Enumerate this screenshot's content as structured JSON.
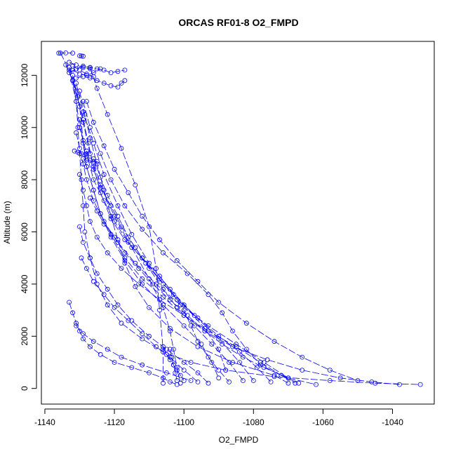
{
  "chart_data": {
    "type": "scatter",
    "title": "ORCAS RF01-8 O2_FMPD",
    "xlabel": "O2_FMPD",
    "ylabel": "Altitude (m)",
    "xlim": [
      -1141,
      -1028
    ],
    "ylim": [
      -600,
      13300
    ],
    "xticks": [
      "-1140",
      "-1120",
      "-1100",
      "-1080",
      "-1060",
      "-1040"
    ],
    "yticks": [
      "0",
      "2000",
      "4000",
      "6000",
      "8000",
      "10000",
      "12000"
    ],
    "grid": false,
    "legend": "none",
    "style": {
      "color": "#0000ff",
      "marker": "open-circle",
      "line": "dashed"
    },
    "series": [
      {
        "x": [
          -1135.5,
          -1133,
          -1131,
          -1130.5,
          -1130,
          -1129.5,
          -1129,
          -1128.5,
          -1127,
          -1125,
          -1122,
          -1118,
          -1112,
          -1106,
          -1098,
          -1088,
          -1074,
          -1058,
          -1045,
          -1032
        ],
        "y": [
          12850,
          12200,
          11000,
          10000,
          9000,
          8000,
          7000,
          6000,
          5000,
          4000,
          3200,
          2500,
          1900,
          1400,
          1000,
          700,
          450,
          300,
          200,
          150
        ]
      },
      {
        "x": [
          -1134,
          -1132,
          -1130,
          -1129,
          -1128,
          -1126,
          -1124,
          -1121,
          -1117,
          -1112,
          -1106,
          -1100,
          -1094,
          -1086,
          -1076,
          -1066,
          -1055,
          -1046,
          -1038
        ],
        "y": [
          12400,
          11800,
          10800,
          9500,
          8500,
          7600,
          6700,
          5900,
          5000,
          4200,
          3500,
          2800,
          2200,
          1600,
          1100,
          700,
          400,
          250,
          150
        ]
      },
      {
        "x": [
          -1132,
          -1130.5,
          -1129,
          -1127.5,
          -1126,
          -1124,
          -1121,
          -1117,
          -1112,
          -1107,
          -1103,
          -1100,
          -1098,
          -1096,
          -1093,
          -1090,
          -1087
        ],
        "y": [
          12000,
          11200,
          10300,
          9400,
          8500,
          7500,
          6500,
          5700,
          5000,
          4300,
          3600,
          3000,
          2400,
          1800,
          1200,
          700,
          250
        ]
      },
      {
        "x": [
          -1133,
          -1131,
          -1129,
          -1127,
          -1124,
          -1120,
          -1115,
          -1110,
          -1106,
          -1104,
          -1103,
          -1102,
          -1101
        ],
        "y": [
          12300,
          11400,
          10200,
          9000,
          7800,
          6600,
          5400,
          4200,
          3100,
          2200,
          1500,
          800,
          200
        ]
      },
      {
        "x": [
          -1131,
          -1129,
          -1126,
          -1123,
          -1119,
          -1115,
          -1110,
          -1104,
          -1097,
          -1090,
          -1084,
          -1080
        ],
        "y": [
          11700,
          10600,
          9400,
          8200,
          7000,
          5900,
          4800,
          3800,
          2800,
          1900,
          1000,
          300
        ]
      },
      {
        "x": [
          -1130,
          -1128.5,
          -1127,
          -1125,
          -1123,
          -1121,
          -1119,
          -1117,
          -1114,
          -1110,
          -1104,
          -1096,
          -1086,
          -1074,
          -1070
        ],
        "y": [
          11400,
          10500,
          9600,
          8600,
          7600,
          6600,
          5700,
          4800,
          3900,
          3100,
          2300,
          1600,
          1000,
          500,
          200
        ]
      },
      {
        "x": [
          -1129,
          -1127,
          -1124,
          -1121,
          -1117,
          -1112,
          -1106,
          -1099,
          -1093,
          -1089,
          -1086,
          -1082,
          -1078,
          -1072,
          -1067
        ],
        "y": [
          11000,
          10000,
          9000,
          8000,
          7000,
          6100,
          5200,
          4400,
          3600,
          2900,
          2200,
          1500,
          900,
          500,
          200
        ]
      },
      {
        "x": [
          -1131,
          -1130,
          -1129,
          -1128,
          -1126,
          -1123,
          -1119,
          -1114,
          -1108,
          -1101,
          -1093,
          -1085,
          -1077,
          -1070
        ],
        "y": [
          9800,
          9200,
          8600,
          8000,
          7200,
          6400,
          5600,
          4800,
          4000,
          3200,
          2400,
          1700,
          1000,
          400
        ]
      },
      {
        "x": [
          -1128,
          -1126,
          -1123,
          -1120,
          -1116,
          -1112,
          -1107,
          -1102,
          -1096,
          -1090,
          -1082,
          -1074,
          -1066,
          -1058,
          -1050
        ],
        "y": [
          11000,
          10200,
          9300,
          8400,
          7500,
          6600,
          5700,
          4900,
          4100,
          3300,
          2500,
          1800,
          1200,
          700,
          300
        ]
      },
      {
        "x": [
          -1130,
          -1129,
          -1128,
          -1126,
          -1124,
          -1121,
          -1117,
          -1112,
          -1106,
          -1100,
          -1095,
          -1092,
          -1090
        ],
        "y": [
          10300,
          9400,
          8500,
          7600,
          6700,
          5800,
          4900,
          4000,
          3200,
          2400,
          1700,
          1000,
          400
        ]
      },
      {
        "x": [
          -1127,
          -1125,
          -1122,
          -1118,
          -1114,
          -1110,
          -1108,
          -1107,
          -1106,
          -1106
        ],
        "y": [
          12300,
          11500,
          10500,
          9200,
          7800,
          6200,
          4600,
          3000,
          1500,
          200
        ]
      },
      {
        "x": [
          -1133,
          -1132,
          -1131,
          -1130,
          -1129,
          -1127,
          -1124,
          -1120,
          -1115,
          -1110,
          -1106,
          -1104,
          -1102
        ],
        "y": [
          3300,
          2900,
          2500,
          2200,
          1900,
          1600,
          1300,
          1000,
          800,
          600,
          400,
          250,
          150
        ]
      },
      {
        "x": [
          -1131,
          -1129,
          -1126,
          -1122,
          -1118,
          -1112,
          -1105,
          -1098
        ],
        "y": [
          2400,
          2100,
          1800,
          1500,
          1200,
          900,
          600,
          300
        ]
      },
      {
        "x": [
          -1129.5,
          -1128,
          -1126,
          -1123,
          -1120,
          -1116,
          -1112,
          -1108,
          -1104,
          -1100,
          -1096
        ],
        "y": [
          5000,
          4600,
          4100,
          3600,
          3100,
          2600,
          2100,
          1600,
          1200,
          700,
          250
        ]
      },
      {
        "x": [
          -1128,
          -1126,
          -1124,
          -1121,
          -1118,
          -1114,
          -1110,
          -1106,
          -1102,
          -1097,
          -1092,
          -1087,
          -1083
        ],
        "y": [
          9100,
          8400,
          7700,
          7000,
          6200,
          5400,
          4600,
          3800,
          3100,
          2400,
          1700,
          1000,
          300
        ]
      },
      {
        "x": [
          -1132,
          -1131,
          -1130,
          -1128,
          -1126,
          -1123,
          -1120,
          -1116,
          -1111,
          -1106,
          -1100,
          -1094,
          -1090,
          -1088
        ],
        "y": [
          11800,
          11000,
          10000,
          9000,
          8000,
          7200,
          6400,
          5600,
          4800,
          4000,
          3200,
          2300,
          1500,
          700
        ]
      },
      {
        "x": [
          -1126,
          -1124,
          -1122,
          -1119,
          -1116,
          -1112,
          -1107,
          -1102,
          -1096,
          -1090,
          -1084,
          -1079,
          -1075
        ],
        "y": [
          8800,
          8100,
          7400,
          6600,
          5800,
          5000,
          4200,
          3400,
          2700,
          2000,
          1400,
          800,
          250
        ]
      },
      {
        "x": [
          -1130,
          -1129,
          -1128,
          -1127,
          -1125,
          -1122,
          -1118,
          -1113,
          -1107,
          -1100,
          -1093,
          -1085,
          -1078,
          -1072,
          -1068
        ],
        "y": [
          8200,
          7600,
          7000,
          6400,
          5800,
          5200,
          4600,
          4000,
          3400,
          2800,
          2200,
          1600,
          1000,
          500,
          200
        ]
      },
      {
        "x": [
          -1127,
          -1125,
          -1123,
          -1120,
          -1117,
          -1113,
          -1109,
          -1104,
          -1099,
          -1094,
          -1089,
          -1083,
          -1077,
          -1070,
          -1062
        ],
        "y": [
          7300,
          6800,
          6300,
          5800,
          5200,
          4600,
          4000,
          3400,
          2800,
          2200,
          1700,
          1200,
          800,
          400,
          150
        ]
      },
      {
        "x": [
          -1130,
          -1129,
          -1127,
          -1125,
          -1122,
          -1119,
          -1115,
          -1110,
          -1105,
          -1100,
          -1096,
          -1093
        ],
        "y": [
          6200,
          5600,
          5000,
          4400,
          3800,
          3200,
          2600,
          2000,
          1500,
          1000,
          600,
          200
        ]
      },
      {
        "x": [
          -1136,
          -1134,
          -1132
        ],
        "y": [
          12850,
          12860,
          12850
        ]
      },
      {
        "x": [
          -1130,
          -1129.5,
          -1129
        ],
        "y": [
          12750,
          12740,
          12730
        ]
      },
      {
        "x": [
          -1133,
          -1131,
          -1129,
          -1127,
          -1125,
          -1123,
          -1121,
          -1119,
          -1117
        ],
        "y": [
          12100,
          12250,
          12350,
          12300,
          12250,
          12200,
          12100,
          12150,
          12200
        ]
      },
      {
        "x": [
          -1132,
          -1130,
          -1128,
          -1126,
          -1124
        ],
        "y": [
          12200,
          12050,
          12000,
          12100,
          12250
        ]
      },
      {
        "x": [
          -1132,
          -1130,
          -1128,
          -1126
        ],
        "y": [
          12350,
          12200,
          12050,
          11950
        ]
      },
      {
        "x": [
          -1133,
          -1131,
          -1129,
          -1127
        ],
        "y": [
          12500,
          12400,
          12300,
          12250
        ]
      },
      {
        "x": [
          -1131,
          -1129,
          -1127,
          -1125,
          -1123,
          -1121,
          -1119,
          -1118,
          -1117
        ],
        "y": [
          11900,
          11950,
          11900,
          11800,
          11700,
          11600,
          11550,
          11700,
          11800
        ]
      },
      {
        "x": [
          -1131.5,
          -1130.5,
          -1129.5,
          -1128.5,
          -1128
        ],
        "y": [
          9100,
          9050,
          9000,
          8950,
          8900
        ]
      },
      {
        "x": [
          -1129,
          -1128,
          -1127,
          -1126,
          -1125
        ],
        "y": [
          8800,
          8750,
          8750,
          8700,
          8700
        ]
      },
      {
        "x": [
          -1106,
          -1105,
          -1104,
          -1103,
          -1102,
          -1101,
          -1100
        ],
        "y": [
          1600,
          1300,
          1100,
          900,
          700,
          500,
          300
        ]
      },
      {
        "x": [
          -1104,
          -1103.5,
          -1103,
          -1102.5,
          -1102
        ],
        "y": [
          1500,
          1200,
          900,
          600,
          300
        ]
      }
    ]
  }
}
